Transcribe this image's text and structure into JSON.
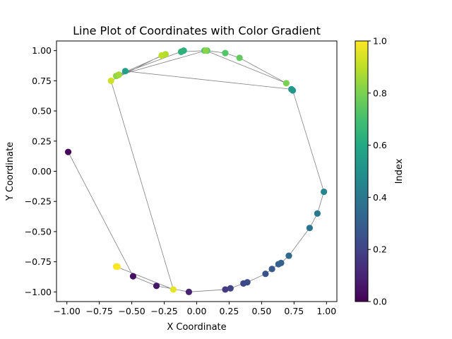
{
  "chart_data": {
    "type": "scatter",
    "title": "Line Plot of Coordinates with Color Gradient",
    "xlabel": "X Coordinate",
    "ylabel": "Y Coordinate",
    "xlim": [
      -1.08,
      1.08
    ],
    "ylim": [
      -1.08,
      1.08
    ],
    "xticks": [
      -1.0,
      -0.75,
      -0.5,
      -0.25,
      0.0,
      0.25,
      0.5,
      0.75,
      1.0
    ],
    "xtick_labels": [
      "−1.00",
      "−0.75",
      "−0.50",
      "−0.25",
      "0.00",
      "0.25",
      "0.50",
      "0.75",
      "1.00"
    ],
    "yticks": [
      -1.0,
      -0.75,
      -0.5,
      -0.25,
      0.0,
      0.25,
      0.5,
      0.75,
      1.0
    ],
    "ytick_labels": [
      "−1.00",
      "−0.75",
      "−0.50",
      "−0.25",
      "0.00",
      "0.25",
      "0.50",
      "0.75",
      "1.00"
    ],
    "line_color": "#808080",
    "colormap": "viridis",
    "colorbar": {
      "label": "Index",
      "range": [
        0.0,
        1.0
      ],
      "ticks": [
        0.0,
        0.2,
        0.4,
        0.6,
        0.8,
        1.0
      ],
      "tick_labels": [
        "0.0",
        "0.2",
        "0.4",
        "0.6",
        "0.8",
        "1.0"
      ]
    },
    "points": [
      {
        "x": -0.99,
        "y": 0.16,
        "c": 0.02
      },
      {
        "x": -0.49,
        "y": -0.87,
        "c": 0.04
      },
      {
        "x": -0.31,
        "y": -0.95,
        "c": 0.06
      },
      {
        "x": -0.06,
        "y": -1.0,
        "c": 0.1
      },
      {
        "x": 0.22,
        "y": -0.98,
        "c": 0.17
      },
      {
        "x": 0.26,
        "y": -0.97,
        "c": 0.19
      },
      {
        "x": 0.36,
        "y": -0.93,
        "c": 0.21
      },
      {
        "x": 0.39,
        "y": -0.92,
        "c": 0.23
      },
      {
        "x": 0.53,
        "y": -0.85,
        "c": 0.25
      },
      {
        "x": 0.58,
        "y": -0.81,
        "c": 0.28
      },
      {
        "x": 0.63,
        "y": -0.77,
        "c": 0.3
      },
      {
        "x": 0.65,
        "y": -0.76,
        "c": 0.31
      },
      {
        "x": 0.71,
        "y": -0.7,
        "c": 0.34
      },
      {
        "x": 0.87,
        "y": -0.47,
        "c": 0.38
      },
      {
        "x": 0.93,
        "y": -0.35,
        "c": 0.41
      },
      {
        "x": 0.98,
        "y": -0.17,
        "c": 0.45
      },
      {
        "x": 0.74,
        "y": 0.67,
        "c": 0.52
      },
      {
        "x": 0.73,
        "y": 0.68,
        "c": 0.53
      },
      {
        "x": -0.55,
        "y": 0.83,
        "c": 0.56
      },
      {
        "x": -0.6,
        "y": 0.8,
        "c": 0.62
      },
      {
        "x": -0.1,
        "y": 1.0,
        "c": 0.63
      },
      {
        "x": -0.12,
        "y": 0.99,
        "c": 0.64
      },
      {
        "x": 0.06,
        "y": 1.0,
        "c": 0.71
      },
      {
        "x": 0.08,
        "y": 1.0,
        "c": 0.72
      },
      {
        "x": 0.22,
        "y": 0.98,
        "c": 0.73
      },
      {
        "x": 0.33,
        "y": 0.94,
        "c": 0.76
      },
      {
        "x": 0.69,
        "y": 0.73,
        "c": 0.8
      },
      {
        "x": 0.07,
        "y": 1.0,
        "c": 0.82
      },
      {
        "x": -0.62,
        "y": 0.79,
        "c": 0.83
      },
      {
        "x": -0.6,
        "y": 0.8,
        "c": 0.86
      },
      {
        "x": -0.24,
        "y": 0.97,
        "c": 0.88
      },
      {
        "x": -0.27,
        "y": 0.96,
        "c": 0.9
      },
      {
        "x": -0.66,
        "y": 0.75,
        "c": 0.93
      },
      {
        "x": -0.18,
        "y": -0.98,
        "c": 0.96
      },
      {
        "x": -0.62,
        "y": -0.79,
        "c": 0.98
      },
      {
        "x": -0.61,
        "y": -0.79,
        "c": 1.0
      }
    ]
  }
}
